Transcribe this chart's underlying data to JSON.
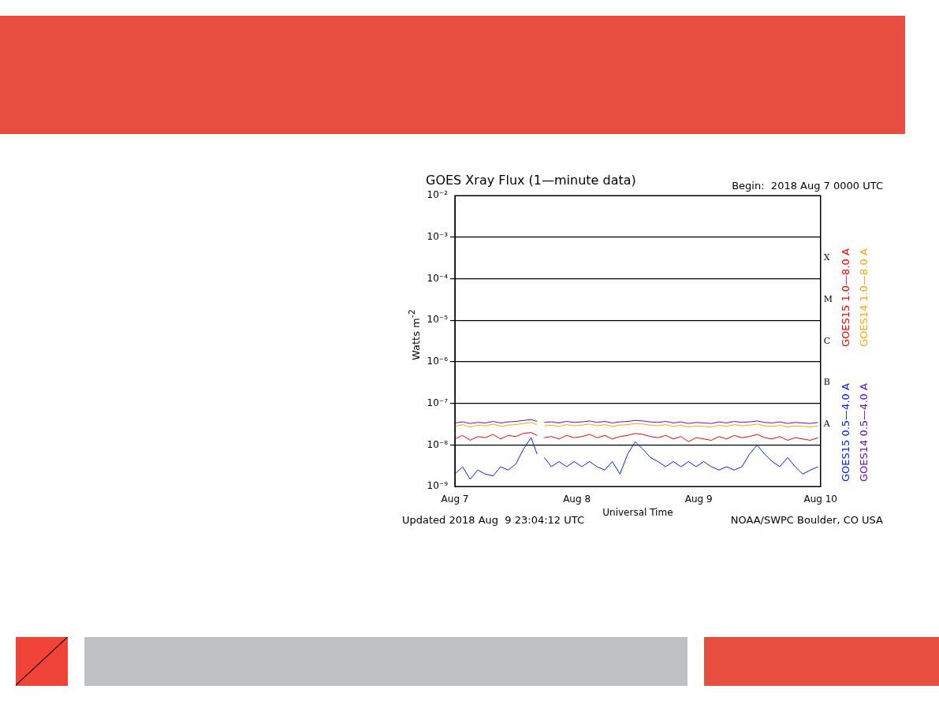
{
  "chart_data": {
    "type": "line",
    "title": "GOES Xray Flux (1—minute data)",
    "subtitle": "Begin:  2018 Aug 7 0000 UTC",
    "xlabel": "Universal Time",
    "ylabel": "Watts m$^{-2}$",
    "annotations": [
      "Updated 2018 Aug  9 23:04:12 UTC",
      "NOAA/SWPC Boulder, CO USA",
      "A",
      "B",
      "C",
      "M",
      "X"
    ],
    "x": [
      "2018-08-07T00:00",
      "2018-08-07T01:30",
      "2018-08-07T03:00",
      "2018-08-07T04:30",
      "2018-08-07T06:00",
      "2018-08-07T07:30",
      "2018-08-07T09:00",
      "2018-08-07T10:30",
      "2018-08-07T12:00",
      "2018-08-07T13:30",
      "2018-08-07T15:00",
      "2018-08-07T16:12",
      "2018-08-07T16:54",
      "2018-08-07T17:36",
      "2018-08-07T19:00",
      "2018-08-07T20:30",
      "2018-08-07T22:00",
      "2018-08-07T23:30",
      "2018-08-08T01:00",
      "2018-08-08T02:30",
      "2018-08-08T04:00",
      "2018-08-08T05:30",
      "2018-08-08T07:00",
      "2018-08-08T08:30",
      "2018-08-08T10:00",
      "2018-08-08T11:30",
      "2018-08-08T13:00",
      "2018-08-08T14:30",
      "2018-08-08T16:00",
      "2018-08-08T17:30",
      "2018-08-08T19:00",
      "2018-08-08T20:30",
      "2018-08-08T22:00",
      "2018-08-08T23:30",
      "2018-08-09T01:00",
      "2018-08-09T02:30",
      "2018-08-09T04:00",
      "2018-08-09T05:30",
      "2018-08-09T07:00",
      "2018-08-09T08:30",
      "2018-08-09T10:00",
      "2018-08-09T11:30",
      "2018-08-09T13:00",
      "2018-08-09T14:30",
      "2018-08-09T16:00",
      "2018-08-09T17:30",
      "2018-08-09T19:00",
      "2018-08-09T20:30",
      "2018-08-09T22:00",
      "2018-08-09T23:30"
    ],
    "series": [
      {
        "name": "GOES15 1.0—8.0 A",
        "color": "#ff0000",
        "values": [
          1.4e-08,
          1.7e-08,
          1.3e-08,
          1.6e-08,
          1.5e-08,
          1.8e-08,
          1.4e-08,
          1.7e-08,
          1.6e-08,
          1.9e-08,
          2e-08,
          1.7e-08,
          null,
          1.5e-08,
          1.6e-08,
          1.4e-08,
          1.7e-08,
          1.5e-08,
          1.6e-08,
          1.8e-08,
          1.5e-08,
          1.7e-08,
          1.4e-08,
          1.6e-08,
          1.7e-08,
          1.9e-08,
          1.8e-08,
          1.6e-08,
          1.5e-08,
          1.7e-08,
          1.4e-08,
          1.6e-08,
          1.2e-08,
          1.5e-08,
          1.4e-08,
          1.3e-08,
          1.6e-08,
          1.4e-08,
          1.7e-08,
          1.5e-08,
          1.6e-08,
          1.8e-08,
          1.5e-08,
          1.4e-08,
          1.6e-08,
          1.3e-08,
          1.5e-08,
          1.4e-08,
          1.3e-08,
          1.5e-08
        ]
      },
      {
        "name": "GOES14 1.0—8.0 A",
        "color": "#ffa500",
        "values": [
          2.8e-08,
          3.1e-08,
          2.7e-08,
          3e-08,
          2.9e-08,
          3.2e-08,
          2.8e-08,
          3e-08,
          3.1e-08,
          3.3e-08,
          3.5e-08,
          3.1e-08,
          null,
          2.9e-08,
          3e-08,
          2.8e-08,
          3.1e-08,
          2.9e-08,
          3e-08,
          3.2e-08,
          2.9e-08,
          3.1e-08,
          2.8e-08,
          3e-08,
          3.1e-08,
          3.3e-08,
          3.2e-08,
          3e-08,
          2.9e-08,
          3.1e-08,
          2.8e-08,
          3e-08,
          2.7e-08,
          2.9e-08,
          2.8e-08,
          2.7e-08,
          3e-08,
          2.8e-08,
          3.1e-08,
          2.9e-08,
          3e-08,
          3.2e-08,
          2.9e-08,
          2.8e-08,
          3e-08,
          2.7e-08,
          2.9e-08,
          2.8e-08,
          2.7e-08,
          2.9e-08
        ]
      },
      {
        "name": "GOES15 0.5—4.0 A",
        "color": "#0022ff",
        "values": [
          2e-09,
          3e-09,
          1.5e-09,
          2.5e-09,
          2e-09,
          1.8e-09,
          3e-09,
          2.5e-09,
          3.5e-09,
          8e-09,
          1.5e-08,
          6e-09,
          null,
          5e-09,
          3e-09,
          4e-09,
          3e-09,
          4e-09,
          3e-09,
          4e-09,
          3e-09,
          2.5e-09,
          4e-09,
          2e-09,
          6e-09,
          1.2e-08,
          8e-09,
          5e-09,
          4e-09,
          3e-09,
          4e-09,
          3e-09,
          4e-09,
          3e-09,
          4e-09,
          3e-09,
          2.5e-09,
          3e-09,
          2.5e-09,
          3e-09,
          6e-09,
          1e-08,
          6e-09,
          4e-09,
          3e-09,
          5e-09,
          3e-09,
          2e-09,
          2.5e-09,
          3e-09
        ]
      },
      {
        "name": "GOES14 0.5—4.0 A",
        "color": "#6a0dcc",
        "values": [
          3.4e-08,
          3.6e-08,
          3.3e-08,
          3.5e-08,
          3.4e-08,
          3.7e-08,
          3.4e-08,
          3.6e-08,
          3.7e-08,
          3.9e-08,
          4.1e-08,
          3.7e-08,
          null,
          3.5e-08,
          3.6e-08,
          3.4e-08,
          3.7e-08,
          3.5e-08,
          3.6e-08,
          3.8e-08,
          3.5e-08,
          3.7e-08,
          3.4e-08,
          3.6e-08,
          3.7e-08,
          3.9e-08,
          3.8e-08,
          3.6e-08,
          3.5e-08,
          3.7e-08,
          3.4e-08,
          3.6e-08,
          3.3e-08,
          3.5e-08,
          3.4e-08,
          3.3e-08,
          3.6e-08,
          3.4e-08,
          3.7e-08,
          3.5e-08,
          3.6e-08,
          3.8e-08,
          3.5e-08,
          3.4e-08,
          3.6e-08,
          3.3e-08,
          3.5e-08,
          3.4e-08,
          3.3e-08,
          3.5e-08
        ]
      }
    ],
    "xlim": [
      "2018-08-07",
      "2018-08-10"
    ],
    "xticks": [
      {
        "value": "2018-08-07",
        "label": "Aug 7"
      },
      {
        "value": "2018-08-08",
        "label": "Aug 8"
      },
      {
        "value": "2018-08-09",
        "label": "Aug 9"
      },
      {
        "value": "2018-08-10",
        "label": "Aug 10"
      }
    ],
    "ylim": [
      1e-09,
      0.01
    ],
    "yticks": [
      {
        "value": 1e-09,
        "label": "10⁻⁹"
      },
      {
        "value": 1e-08,
        "label": "10⁻⁸"
      },
      {
        "value": 1e-07,
        "label": "10⁻⁷"
      },
      {
        "value": 1e-06,
        "label": "10⁻⁶"
      },
      {
        "value": 1e-05,
        "label": "10⁻⁵"
      },
      {
        "value": 0.0001,
        "label": "10⁻⁴"
      },
      {
        "value": 0.001,
        "label": "10⁻³"
      },
      {
        "value": 0.01,
        "label": "10⁻²"
      }
    ],
    "log": "y",
    "grid": "y",
    "legend": "right",
    "marker": "none",
    "line_style": "solid"
  }
}
